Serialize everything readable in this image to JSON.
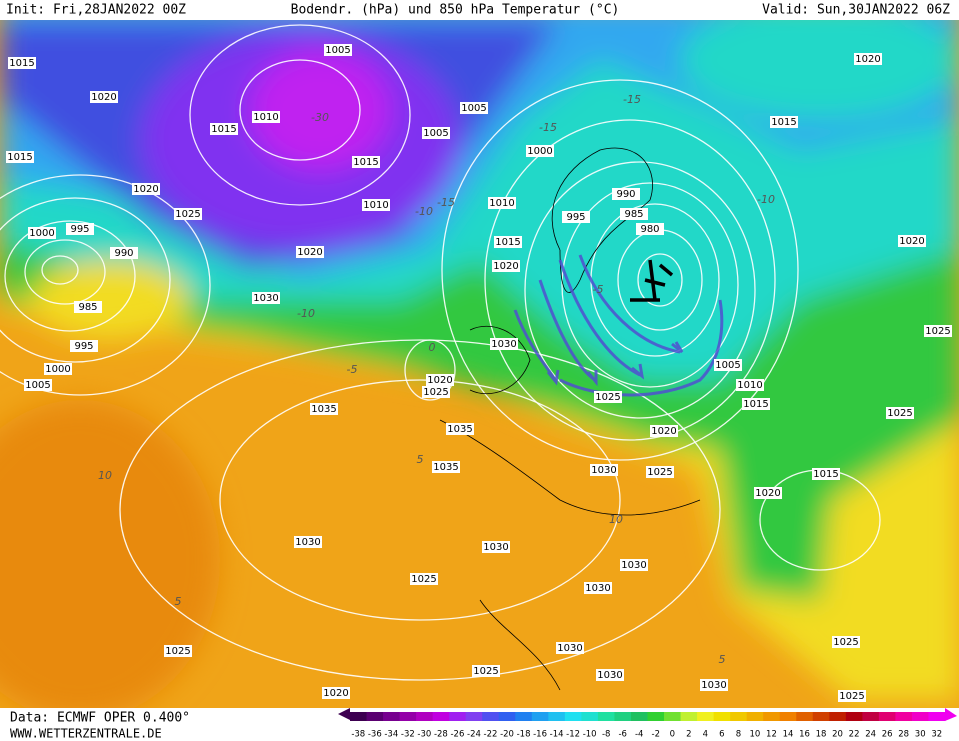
{
  "header": {
    "init": "Init: Fri,28JAN2022 00Z",
    "title": "Bodendr. (hPa) und 850 hPa Temperatur (°C)",
    "valid": "Valid: Sun,30JAN2022 06Z"
  },
  "footer": {
    "source": "Data: ECMWF OPER 0.400°",
    "site": "WWW.WETTERZENTRALE.DE"
  },
  "legend": {
    "values": [
      -38,
      -36,
      -34,
      -32,
      -30,
      -28,
      -26,
      -24,
      -22,
      -20,
      -18,
      -16,
      -14,
      -12,
      -10,
      -8,
      -6,
      -4,
      -2,
      0,
      2,
      4,
      6,
      8,
      10,
      12,
      14,
      16,
      18,
      20,
      22,
      24,
      26,
      28,
      30,
      32
    ],
    "colors": [
      "#3d0050",
      "#5a0070",
      "#77008f",
      "#9400a8",
      "#b000c0",
      "#c000e0",
      "#a020f0",
      "#8040f0",
      "#5050f0",
      "#3060f0",
      "#2080f0",
      "#20a0f0",
      "#20c0f0",
      "#20e0f0",
      "#20e0d0",
      "#20e0a0",
      "#20d080",
      "#20c060",
      "#30d030",
      "#70e030",
      "#c0f030",
      "#f0f020",
      "#f0e000",
      "#f0c800",
      "#f0b000",
      "#f09800",
      "#f08000",
      "#e06000",
      "#d04000",
      "#c02000",
      "#b00010",
      "#c00040",
      "#e00070",
      "#f000a0",
      "#f000c8",
      "#f000f0"
    ]
  },
  "isobar_labels": [
    "1015",
    "1020",
    "1015",
    "1010",
    "1005",
    "1015",
    "1020",
    "1025",
    "995",
    "1000",
    "990",
    "985",
    "995",
    "1000",
    "1005",
    "1030",
    "1015",
    "1010",
    "1005",
    "1005",
    "1000",
    "1010",
    "995",
    "990",
    "985",
    "980",
    "1015",
    "1020",
    "1030",
    "1020",
    "1025",
    "1035",
    "1035",
    "1035",
    "1025",
    "1020",
    "1030",
    "1025",
    "1005",
    "1010",
    "1015",
    "1020",
    "1015",
    "1020",
    "1025",
    "1025",
    "1015",
    "1020",
    "1030",
    "1030",
    "1030",
    "1030",
    "1025",
    "1025",
    "1030",
    "1030",
    "1025",
    "1020",
    "1030",
    "1025",
    "1025",
    "1020"
  ],
  "temperature_labels": [
    "-30",
    "-15",
    "-15",
    "-10",
    "-15",
    "-10",
    "-5",
    "0",
    "-5",
    "5",
    "5",
    "10",
    "-10",
    "10",
    "5"
  ]
}
